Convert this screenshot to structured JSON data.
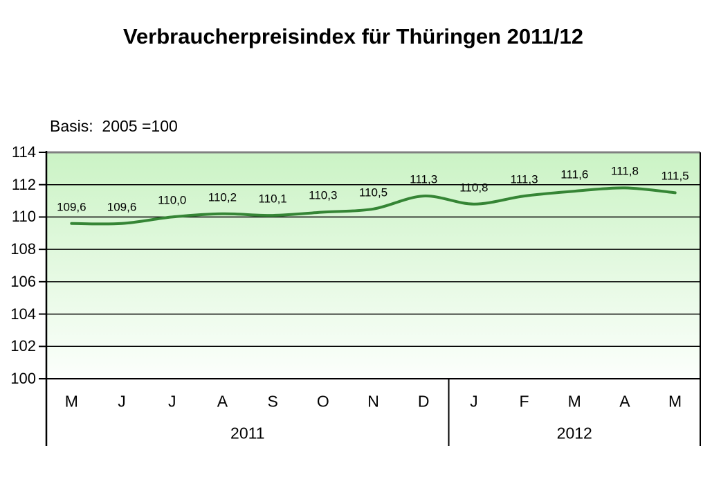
{
  "header": {
    "title": "Verbraucherpreisindex für Thüringen 2011/12",
    "basis_note": "Basis:  2005 =100"
  },
  "chart_data": {
    "type": "line",
    "title": "Verbraucherpreisindex für Thüringen 2011/12",
    "subtitle": "Basis: 2005 =100",
    "x_categories": [
      "M",
      "J",
      "J",
      "A",
      "S",
      "O",
      "N",
      "D",
      "J",
      "F",
      "M",
      "A",
      "M"
    ],
    "year_groups": [
      {
        "label": "2011",
        "month_count": 8
      },
      {
        "label": "2012",
        "month_count": 5
      }
    ],
    "series": [
      {
        "name": "Verbraucherpreisindex",
        "values": [
          109.6,
          109.6,
          110.0,
          110.2,
          110.1,
          110.3,
          110.5,
          111.3,
          110.8,
          111.3,
          111.6,
          111.8,
          111.5
        ],
        "value_labels": [
          "109,6",
          "109,6",
          "110,0",
          "110,2",
          "110,1",
          "110,3",
          "110,5",
          "111,3",
          "110,8",
          "111,3",
          "111,6",
          "111,8",
          "111,5"
        ],
        "color": "#358535"
      }
    ],
    "y_axis": {
      "min": 100,
      "max": 114,
      "tick_step": 2,
      "tick_labels": [
        "100",
        "102",
        "104",
        "106",
        "108",
        "110",
        "112",
        "114"
      ]
    },
    "grid": true,
    "legend_position": "none",
    "colors": {
      "plot_bg_top": "#cbf3c5",
      "plot_bg_bottom": "#fcfffc",
      "grid_line": "#000000",
      "top_border": "#808080",
      "axis_line": "#000000",
      "text": "#000000"
    }
  }
}
